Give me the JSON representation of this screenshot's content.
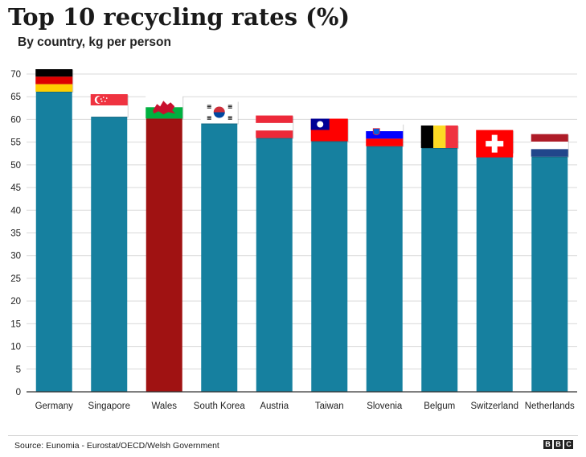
{
  "header": {
    "title": "Top 10 recycling rates (%)",
    "subtitle": "By country, kg per person"
  },
  "footer": {
    "source": "Source: Eunomia - Eurostat/OECD/Welsh Government",
    "logo_letters": [
      "B",
      "B",
      "C"
    ]
  },
  "colors": {
    "bar_default": "#16809f",
    "bar_highlight": "#a01212",
    "gridline": "#d9d9d9",
    "axis": "#333333"
  },
  "chart_data": {
    "type": "bar",
    "title": "Top 10 recycling rates (%)",
    "subtitle": "By country, kg per person",
    "xlabel": "",
    "ylabel": "",
    "ylim": [
      0,
      70
    ],
    "yticks": [
      0,
      5,
      10,
      15,
      20,
      25,
      30,
      35,
      40,
      45,
      50,
      55,
      60,
      65,
      70
    ],
    "grid": true,
    "categories": [
      "Germany",
      "Singapore",
      "Wales",
      "South Korea",
      "Austria",
      "Taiwan",
      "Slovenia",
      "Belgum",
      "Switzerland",
      "Netherlands"
    ],
    "values": [
      66.1,
      60.6,
      60.2,
      59.1,
      55.9,
      55.2,
      54.1,
      53.7,
      52.7,
      51.8
    ],
    "highlight": "Wales",
    "flag_icons": [
      "germany-flag-icon",
      "singapore-flag-icon",
      "wales-flag-icon",
      "south-korea-flag-icon",
      "austria-flag-icon",
      "taiwan-flag-icon",
      "slovenia-flag-icon",
      "belgium-flag-icon",
      "switzerland-flag-icon",
      "netherlands-flag-icon"
    ]
  }
}
